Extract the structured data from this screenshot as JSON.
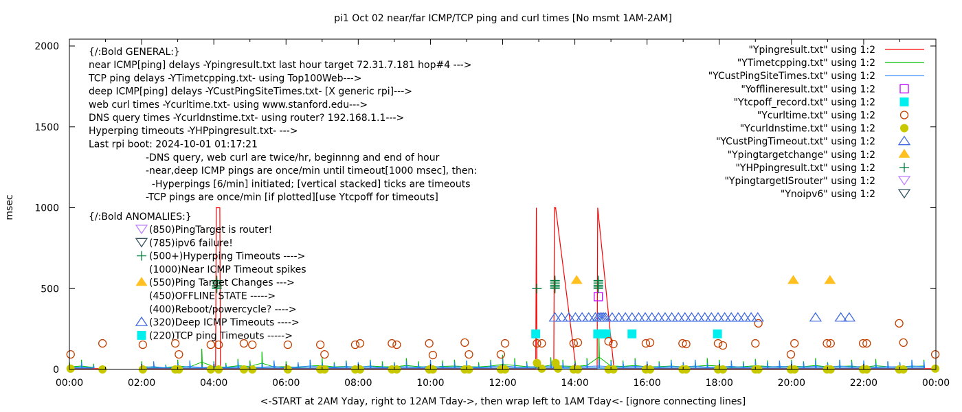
{
  "chart_data": {
    "type": "line",
    "title": "pi1 Oct 02  near/far ICMP/TCP ping and curl times [No msmt 1AM-2AM]",
    "xlabel": "<-START at 2AM Yday, right to 12AM Tday->, then wrap left to 1AM Tday<- [ignore connecting lines]",
    "ylabel": "msec",
    "xlim": [
      "00:00",
      "24:00"
    ],
    "ylim": [
      0,
      2000
    ],
    "x_ticks": [
      "00:00",
      "02:00",
      "04:00",
      "06:00",
      "08:00",
      "10:00",
      "12:00",
      "14:00",
      "16:00",
      "18:00",
      "20:00",
      "22:00",
      "00:00"
    ],
    "y_ticks": [
      "0",
      "500",
      "1000",
      "1500",
      "2000"
    ],
    "grid": false,
    "legend_position": "top-right",
    "annotations": {
      "general": [
        "{/:Bold GENERAL:}",
        "near ICMP[ping] delays -Ypingresult.txt last hour target 72.31.7.181 hop#4 --->",
        "TCP ping delays -YTimetcpping.txt- using Top100Web--->",
        "deep ICMP[ping] delays -YCustPingSiteTimes.txt- [X generic rpi]--->",
        "web curl times -Ycurltime.txt- using www.stanford.edu--->",
        "DNS query times -Ycurldnstime.txt- using router? 192.168.1.1--->",
        "Hyperping timeouts -YHPpingresult.txt- --->",
        "Last rpi boot: 2024-10-01 01:17:21"
      ],
      "notes": [
        "-DNS query, web curl are twice/hr, beginnng and end of hour",
        "-near,deep ICMP pings are once/min until timeout[1000 msec], then:",
        "  -Hyperpings [6/min] initiated; [vertical stacked] ticks are timeouts",
        "-TCP pings are once/min [if plotted][use Ytcpoff for timeouts]"
      ],
      "anomalies_header": "{/:Bold ANOMALIES:}",
      "anomalies": [
        {
          "text": "(850)PingTarget is router!",
          "marker": "isrouter"
        },
        {
          "text": "(785)ipv6 failure!",
          "marker": "noipv6"
        },
        {
          "text": "(500+)Hyperping Timeouts ---->",
          "marker": "hp"
        },
        {
          "text": "(1000)Near ICMP Timeout spikes",
          "marker": ""
        },
        {
          "text": "(550)Ping Target Changes --->",
          "marker": "targetchange"
        },
        {
          "text": "(450)OFFLINE STATE ----->",
          "marker": ""
        },
        {
          "text": "(400)Reboot/powercycle? ---->",
          "marker": ""
        },
        {
          "text": "(320)Deep ICMP Timeouts ---->",
          "marker": "custtimeout"
        },
        {
          "text": "(220)TCP ping Timeouts ----->",
          "marker": "tcpoff"
        }
      ]
    },
    "series": [
      {
        "key": "ping",
        "name": "\"Ypingresult.txt\" using 1:2",
        "style": "line",
        "color": "#ff0000",
        "points": [
          [
            "00:00",
            5
          ],
          [
            "01:00",
            5
          ],
          null,
          [
            "02:00",
            5
          ],
          [
            "04:03",
            5
          ],
          [
            "04:04",
            1000
          ],
          [
            "04:10",
            1000
          ],
          [
            "04:11",
            5
          ],
          [
            "12:55",
            5
          ],
          [
            "12:56",
            1000
          ],
          [
            "12:57",
            5
          ],
          [
            "13:25",
            5
          ],
          [
            "13:26",
            1000
          ],
          [
            "13:28",
            1000
          ],
          [
            "14:02",
            5
          ],
          [
            "14:37",
            5
          ],
          [
            "14:38",
            1000
          ],
          [
            "15:05",
            5
          ],
          [
            "24:00",
            5
          ]
        ]
      },
      {
        "key": "tcp",
        "name": "\"YTimetcpping.txt\" using 1:2",
        "style": "line",
        "color": "#00c000",
        "interval_min": 20,
        "values": [
          45,
          60,
          35,
          null,
          null,
          null,
          50,
          40,
          30,
          60,
          45,
          128,
          50,
          40,
          65,
          55,
          110,
          45,
          50,
          35,
          60,
          70,
          45,
          55,
          40,
          60,
          50,
          45,
          70,
          50,
          40,
          55,
          60,
          50,
          45,
          60,
          90,
          70,
          50,
          40,
          75,
          60,
          55,
          70,
          220,
          60,
          55,
          70,
          45,
          50,
          60,
          45,
          55,
          70,
          60,
          40,
          50,
          65,
          55,
          45,
          60,
          50,
          70,
          45,
          55,
          60,
          40,
          65,
          50,
          45,
          55,
          60
        ]
      },
      {
        "key": "deep",
        "name": "\"YCustPingSiteTimes.txt\" using 1:2",
        "style": "line",
        "color": "#1e7fff",
        "interval_min": 20,
        "values": [
          30,
          45,
          25,
          null,
          null,
          null,
          35,
          50,
          25,
          40,
          55,
          30,
          45,
          30,
          50,
          35,
          40,
          55,
          30,
          45,
          60,
          40,
          35,
          50,
          45,
          55,
          30,
          40,
          50,
          35,
          60,
          40,
          45,
          55,
          30,
          50,
          65,
          45,
          40,
          55,
          50,
          45,
          40,
          55,
          60,
          50,
          45,
          55,
          50,
          40,
          55,
          45,
          60,
          40,
          45,
          55,
          40,
          50,
          45,
          55,
          50,
          45,
          55,
          40,
          60,
          45,
          55,
          40,
          50,
          45,
          60,
          50
        ]
      },
      {
        "key": "offline",
        "name": "\"Yofflineresult.txt\" using 1:2",
        "style": "open-square",
        "color": "#c000ff",
        "points": [
          [
            "14:39",
            450
          ]
        ]
      },
      {
        "key": "tcpoff",
        "name": "\"Ytcpoff_record.txt\" using 1:2",
        "style": "filled-square",
        "color": "#00eeee",
        "points": [
          [
            "12:55",
            220
          ],
          [
            "14:38",
            220
          ],
          [
            "14:45",
            220
          ],
          [
            "14:52",
            220
          ],
          [
            "15:35",
            220
          ],
          [
            "17:57",
            220
          ]
        ]
      },
      {
        "key": "curl",
        "name": "\"Ycurltime.txt\" using 1:2",
        "style": "open-circle",
        "color": "#c04000",
        "points": [
          [
            "00:02",
            93
          ],
          [
            "00:55",
            161
          ],
          [
            "02:02",
            153
          ],
          [
            "02:56",
            161
          ],
          [
            "03:02",
            93
          ],
          [
            "03:55",
            153
          ],
          [
            "04:08",
            153
          ],
          [
            "04:50",
            161
          ],
          [
            "05:04",
            153
          ],
          [
            "06:03",
            153
          ],
          [
            "06:57",
            153
          ],
          [
            "07:04",
            93
          ],
          [
            "07:55",
            153
          ],
          [
            "08:03",
            161
          ],
          [
            "08:56",
            161
          ],
          [
            "09:04",
            153
          ],
          [
            "09:58",
            161
          ],
          [
            "10:04",
            89
          ],
          [
            "10:57",
            166
          ],
          [
            "11:04",
            93
          ],
          [
            "11:57",
            93
          ],
          [
            "12:04",
            161
          ],
          [
            "12:57",
            161
          ],
          [
            "13:05",
            161
          ],
          [
            "13:58",
            161
          ],
          [
            "14:05",
            166
          ],
          [
            "14:56",
            174
          ],
          [
            "15:04",
            157
          ],
          [
            "15:58",
            161
          ],
          [
            "16:05",
            166
          ],
          [
            "16:59",
            161
          ],
          [
            "17:05",
            157
          ],
          [
            "17:58",
            161
          ],
          [
            "18:06",
            148
          ],
          [
            "19:00",
            161
          ],
          [
            "19:05",
            285
          ],
          [
            "19:59",
            93
          ],
          [
            "20:05",
            161
          ],
          [
            "20:59",
            161
          ],
          [
            "21:05",
            161
          ],
          [
            "21:59",
            161
          ],
          [
            "22:05",
            161
          ],
          [
            "22:59",
            285
          ],
          [
            "23:06",
            166
          ],
          [
            "23:59",
            93
          ]
        ]
      },
      {
        "key": "dns",
        "name": "\"Ycurldnstime.txt\" using 1:2",
        "style": "filled-circle",
        "color": "#c8c800",
        "points": [
          [
            "00:02",
            5
          ],
          [
            "00:55",
            0
          ],
          [
            "02:02",
            0
          ],
          [
            "02:56",
            0
          ],
          [
            "03:02",
            0
          ],
          [
            "03:55",
            0
          ],
          [
            "04:08",
            0
          ],
          [
            "04:50",
            0
          ],
          [
            "05:04",
            0
          ],
          [
            "06:03",
            0
          ],
          [
            "06:57",
            0
          ],
          [
            "07:04",
            0
          ],
          [
            "07:55",
            0
          ],
          [
            "08:03",
            0
          ],
          [
            "08:56",
            0
          ],
          [
            "09:04",
            0
          ],
          [
            "09:58",
            0
          ],
          [
            "10:04",
            0
          ],
          [
            "10:57",
            0
          ],
          [
            "11:04",
            0
          ],
          [
            "11:57",
            0
          ],
          [
            "12:04",
            0
          ],
          [
            "12:57",
            40
          ],
          [
            "13:05",
            5
          ],
          [
            "13:28",
            40
          ],
          [
            "13:32",
            5
          ],
          [
            "13:58",
            0
          ],
          [
            "14:05",
            0
          ],
          [
            "14:56",
            0
          ],
          [
            "15:04",
            0
          ],
          [
            "15:58",
            0
          ],
          [
            "16:05",
            0
          ],
          [
            "16:59",
            0
          ],
          [
            "17:05",
            0
          ],
          [
            "17:58",
            0
          ],
          [
            "18:06",
            0
          ],
          [
            "19:00",
            0
          ],
          [
            "19:05",
            0
          ],
          [
            "19:59",
            0
          ],
          [
            "20:05",
            0
          ],
          [
            "20:59",
            0
          ],
          [
            "21:05",
            0
          ],
          [
            "21:59",
            0
          ],
          [
            "22:05",
            0
          ],
          [
            "22:59",
            0
          ],
          [
            "23:06",
            0
          ],
          [
            "23:59",
            5
          ]
        ]
      },
      {
        "key": "custtimeout",
        "name": "\"YCustPingTimeout.txt\" using 1:2",
        "style": "open-triangle",
        "color": "#4169e1",
        "points": [
          [
            "13:27",
            320
          ],
          [
            "13:38",
            320
          ],
          [
            "13:50",
            320
          ],
          [
            "14:01",
            320
          ],
          [
            "14:12",
            320
          ],
          [
            "14:23",
            320
          ],
          [
            "14:34",
            320
          ],
          [
            "14:39",
            320
          ],
          [
            "14:42",
            320
          ],
          [
            "14:45",
            320
          ],
          [
            "14:48",
            320
          ],
          [
            "14:51",
            320
          ],
          [
            "15:02",
            320
          ],
          [
            "15:13",
            320
          ],
          [
            "15:24",
            320
          ],
          [
            "15:35",
            320
          ],
          [
            "15:46",
            320
          ],
          [
            "15:57",
            320
          ],
          [
            "16:08",
            320
          ],
          [
            "16:19",
            320
          ],
          [
            "16:30",
            320
          ],
          [
            "16:41",
            320
          ],
          [
            "16:52",
            320
          ],
          [
            "17:03",
            320
          ],
          [
            "17:14",
            320
          ],
          [
            "17:25",
            320
          ],
          [
            "17:36",
            320
          ],
          [
            "17:47",
            320
          ],
          [
            "17:58",
            320
          ],
          [
            "18:09",
            320
          ],
          [
            "18:20",
            320
          ],
          [
            "18:31",
            320
          ],
          [
            "18:42",
            320
          ],
          [
            "18:53",
            320
          ],
          [
            "19:04",
            320
          ],
          [
            "20:40",
            320
          ],
          [
            "21:22",
            320
          ],
          [
            "21:36",
            320
          ]
        ]
      },
      {
        "key": "targetchange",
        "name": "\"Ypingtargetchange\" using 1:2",
        "style": "filled-triangle",
        "color": "#ffc020",
        "points": [
          [
            "14:03",
            550
          ],
          [
            "20:03",
            550
          ],
          [
            "21:04",
            550
          ]
        ]
      },
      {
        "key": "hp",
        "name": "\"YHPpingresult.txt\" using 1:2",
        "style": "plus",
        "color": "#008040",
        "points": [
          [
            "04:05",
            500
          ],
          [
            "04:05",
            510
          ],
          [
            "04:05",
            520
          ],
          [
            "04:05",
            530
          ],
          [
            "04:05",
            540
          ],
          [
            "04:05",
            550
          ],
          [
            "12:57",
            500
          ],
          [
            "13:27",
            500
          ],
          [
            "13:27",
            510
          ],
          [
            "13:27",
            520
          ],
          [
            "13:27",
            530
          ],
          [
            "13:27",
            540
          ],
          [
            "13:27",
            550
          ],
          [
            "14:39",
            500
          ],
          [
            "14:39",
            510
          ],
          [
            "14:39",
            520
          ],
          [
            "14:39",
            530
          ],
          [
            "14:39",
            540
          ],
          [
            "14:39",
            550
          ]
        ]
      },
      {
        "key": "isrouter",
        "name": "\"YpingtargetISrouter\" using 1:2",
        "style": "open-triangle-down",
        "color": "#c080ff",
        "points": []
      },
      {
        "key": "noipv6",
        "name": "\"Ynoipv6\" using 1:2",
        "style": "open-triangle-down",
        "color": "#305060",
        "points": []
      }
    ]
  }
}
